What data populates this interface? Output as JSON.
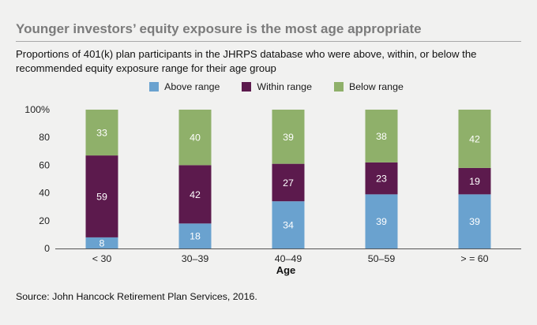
{
  "header": {
    "title": "Younger investors’ equity exposure is the most age appropriate",
    "subtitle": "Proportions of 401(k) plan participants in the JHRPS database who were above, within, or below the recommended equity exposure range for their age group"
  },
  "source": "Source: John Hancock Retirement Plan Services, 2016.",
  "chart_data": {
    "type": "bar",
    "stacked": true,
    "categories": [
      "< 30",
      "30–39",
      "40–49",
      "50–59",
      "> = 60"
    ],
    "series": [
      {
        "name": "Above range",
        "color": "#6aa2cf",
        "values": [
          8,
          18,
          34,
          39,
          39
        ]
      },
      {
        "name": "Within range",
        "color": "#5c1a4d",
        "values": [
          59,
          42,
          27,
          23,
          19
        ]
      },
      {
        "name": "Below range",
        "color": "#8fb06a",
        "values": [
          33,
          40,
          39,
          38,
          42
        ]
      }
    ],
    "xlabel": "Age",
    "ylabel": "",
    "ylim": [
      0,
      100
    ],
    "yticks": [
      "0",
      "20",
      "40",
      "60",
      "80",
      "100%"
    ],
    "legend_position": "top-center"
  }
}
